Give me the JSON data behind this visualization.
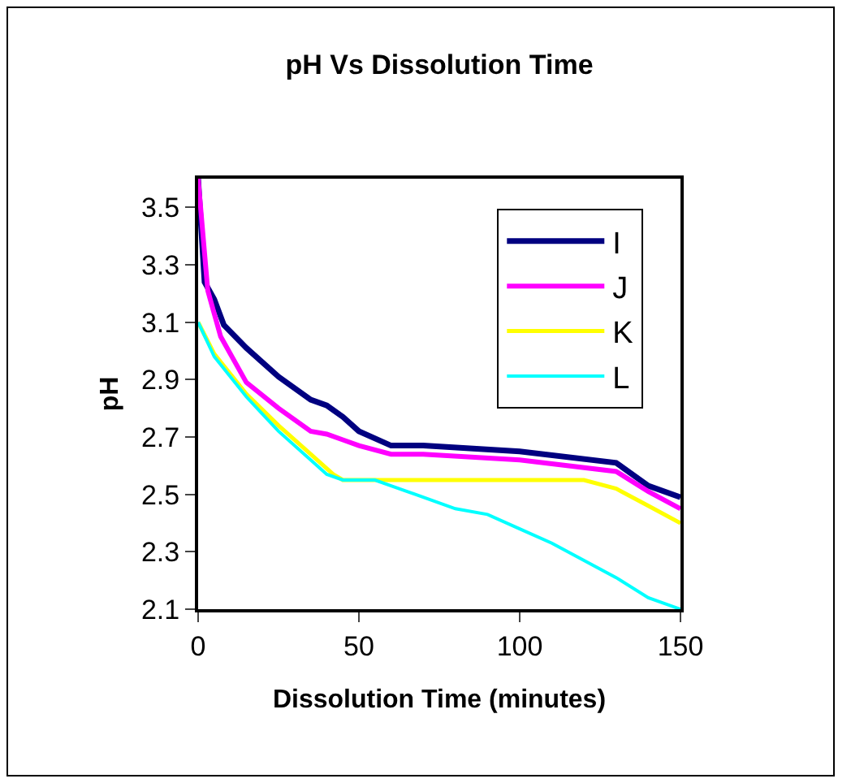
{
  "chart_data": {
    "type": "line",
    "title": "pH Vs Dissolution Time",
    "xlabel": "Dissolution Time (minutes)",
    "ylabel": "pH",
    "xlim": [
      0,
      150
    ],
    "xticks": [
      0,
      50,
      100,
      150
    ],
    "ylim": [
      2.1,
      3.6
    ],
    "yticks": [
      2.1,
      2.3,
      2.5,
      2.7,
      2.9,
      3.1,
      3.3,
      3.5
    ],
    "grid": false,
    "legend": "top right",
    "marker": "none",
    "line_style": "solid",
    "series": [
      {
        "name": "I",
        "color": "#000080",
        "x": [
          0,
          2,
          5,
          8,
          15,
          25,
          35,
          40,
          45,
          50,
          60,
          70,
          100,
          130,
          140,
          150
        ],
        "values": [
          3.6,
          3.24,
          3.18,
          3.09,
          3.01,
          2.91,
          2.83,
          2.81,
          2.77,
          2.72,
          2.67,
          2.67,
          2.65,
          2.61,
          2.53,
          2.49
        ]
      },
      {
        "name": "J",
        "color": "#ff00ff",
        "x": [
          0,
          3,
          7,
          15,
          25,
          35,
          40,
          45,
          50,
          60,
          70,
          100,
          130,
          140,
          150
        ],
        "values": [
          3.6,
          3.21,
          3.05,
          2.89,
          2.8,
          2.72,
          2.71,
          2.69,
          2.67,
          2.64,
          2.64,
          2.62,
          2.58,
          2.51,
          2.45
        ]
      },
      {
        "name": "K",
        "color": "#ffff00",
        "x": [
          0,
          5,
          15,
          25,
          35,
          42,
          45,
          70,
          100,
          120,
          130,
          140,
          150
        ],
        "values": [
          3.1,
          2.99,
          2.85,
          2.74,
          2.64,
          2.57,
          2.55,
          2.55,
          2.55,
          2.55,
          2.52,
          2.46,
          2.4
        ]
      },
      {
        "name": "L",
        "color": "#00ffff",
        "x": [
          0,
          5,
          15,
          25,
          35,
          40,
          45,
          55,
          60,
          65,
          70,
          80,
          90,
          100,
          110,
          120,
          130,
          140,
          150
        ],
        "values": [
          3.1,
          2.98,
          2.84,
          2.72,
          2.62,
          2.57,
          2.55,
          2.55,
          2.53,
          2.51,
          2.49,
          2.45,
          2.43,
          2.38,
          2.33,
          2.27,
          2.21,
          2.14,
          2.1
        ]
      }
    ]
  }
}
